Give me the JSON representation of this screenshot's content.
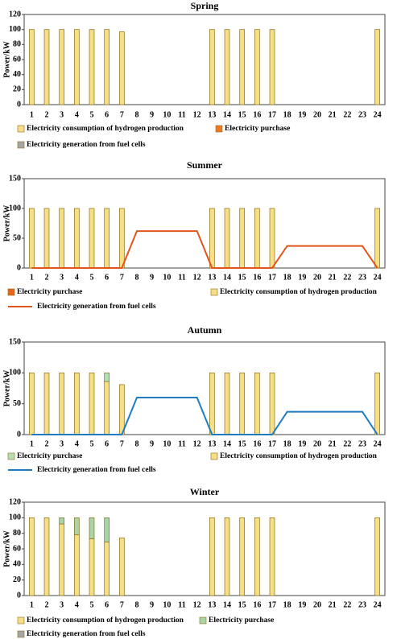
{
  "chart_data": [
    {
      "type": "bar",
      "title": "Spring",
      "y_label": "Power/kW",
      "categories": [
        "1",
        "2",
        "3",
        "4",
        "5",
        "6",
        "7",
        "8",
        "9",
        "10",
        "11",
        "12",
        "13",
        "14",
        "15",
        "16",
        "17",
        "18",
        "19",
        "20",
        "21",
        "22",
        "23",
        "24"
      ],
      "ylim": [
        0,
        120
      ],
      "yticks": [
        0,
        20,
        40,
        60,
        80,
        100,
        120
      ],
      "series": [
        {
          "name": "Electricity consumption of hydrogen production",
          "type": "bar",
          "color": "#f7df86",
          "values": [
            100,
            100,
            100,
            100,
            100,
            100,
            97,
            0,
            0,
            0,
            0,
            0,
            100,
            100,
            100,
            100,
            100,
            0,
            0,
            0,
            0,
            0,
            0,
            100
          ]
        },
        {
          "name": "Electricity purchase",
          "type": "bar",
          "color": "#ee7a22",
          "values": [
            0,
            0,
            0,
            0,
            0,
            0,
            0,
            0,
            0,
            0,
            0,
            0,
            0,
            0,
            0,
            0,
            0,
            0,
            0,
            0,
            0,
            0,
            0,
            0
          ]
        },
        {
          "name": "Electricity generation from fuel cells",
          "type": "bar",
          "color": "#a6a6a6",
          "values": [
            0,
            0,
            0,
            0,
            0,
            0,
            0,
            0,
            0,
            0,
            0,
            0,
            0,
            0,
            0,
            0,
            0,
            0,
            0,
            0,
            0,
            0,
            0,
            0
          ]
        }
      ]
    },
    {
      "type": "bar",
      "title": "Summer",
      "y_label": "Power/kW",
      "categories": [
        "1",
        "2",
        "3",
        "4",
        "5",
        "6",
        "7",
        "8",
        "9",
        "10",
        "11",
        "12",
        "13",
        "14",
        "15",
        "16",
        "17",
        "18",
        "19",
        "20",
        "21",
        "22",
        "23",
        "24"
      ],
      "ylim": [
        0,
        150
      ],
      "yticks": [
        0,
        50,
        100,
        150
      ],
      "series": [
        {
          "name": "Electricity consumption of hydrogen production",
          "type": "bar",
          "color": "#f7df86",
          "values": [
            100,
            100,
            100,
            100,
            100,
            100,
            100,
            0,
            0,
            0,
            0,
            0,
            100,
            100,
            100,
            100,
            100,
            0,
            0,
            0,
            0,
            0,
            0,
            100
          ]
        },
        {
          "name": "Electricity purchase",
          "type": "bar",
          "color": "#e8661c",
          "values": [
            0,
            0,
            0,
            0,
            0,
            0,
            0,
            0,
            0,
            0,
            0,
            0,
            0,
            0,
            0,
            0,
            0,
            0,
            0,
            0,
            0,
            0,
            0,
            0
          ]
        },
        {
          "name": "Electricity generation from fuel cells",
          "type": "line",
          "color": "#e0561a",
          "values": [
            0,
            0,
            0,
            0,
            0,
            0,
            0,
            62,
            62,
            62,
            62,
            62,
            0,
            0,
            0,
            0,
            0,
            37,
            37,
            37,
            37,
            37,
            37,
            0
          ]
        }
      ]
    },
    {
      "type": "bar",
      "title": "Autumn",
      "y_label": "Power/kW",
      "categories": [
        "1",
        "2",
        "3",
        "4",
        "5",
        "6",
        "7",
        "8",
        "9",
        "10",
        "11",
        "12",
        "13",
        "14",
        "15",
        "16",
        "17",
        "18",
        "19",
        "20",
        "21",
        "22",
        "23",
        "24"
      ],
      "ylim": [
        0,
        150
      ],
      "yticks": [
        0,
        50,
        100,
        150
      ],
      "series": [
        {
          "name": "Electricity consumption of hydrogen production",
          "type": "bar",
          "color": "#f7df86",
          "values": [
            100,
            100,
            100,
            100,
            100,
            86,
            81,
            0,
            0,
            0,
            0,
            0,
            100,
            100,
            100,
            100,
            100,
            0,
            0,
            0,
            0,
            0,
            0,
            100
          ]
        },
        {
          "name": "Electricity purchase",
          "type": "bar",
          "color": "#b5dfb0",
          "values": [
            0,
            0,
            0,
            0,
            0,
            14,
            0,
            0,
            0,
            0,
            0,
            0,
            0,
            0,
            0,
            0,
            0,
            0,
            0,
            0,
            0,
            0,
            0,
            0
          ]
        },
        {
          "name": "Electricity generation from fuel cells",
          "type": "line",
          "color": "#1f7cc1",
          "values": [
            0,
            0,
            0,
            0,
            0,
            0,
            0,
            60,
            60,
            60,
            60,
            60,
            0,
            0,
            0,
            0,
            0,
            37,
            37,
            37,
            37,
            37,
            37,
            0
          ]
        }
      ]
    },
    {
      "type": "bar",
      "title": "Winter",
      "y_label": "Power/kW",
      "categories": [
        "1",
        "2",
        "3",
        "4",
        "5",
        "6",
        "7",
        "8",
        "9",
        "10",
        "11",
        "12",
        "13",
        "14",
        "15",
        "16",
        "17",
        "18",
        "19",
        "20",
        "21",
        "22",
        "23",
        "24"
      ],
      "ylim": [
        0,
        120
      ],
      "yticks": [
        0,
        20,
        40,
        60,
        80,
        100,
        120
      ],
      "series": [
        {
          "name": "Electricity consumption of hydrogen production",
          "type": "bar",
          "color": "#f7df86",
          "values": [
            100,
            100,
            92,
            78,
            73,
            69,
            74,
            0,
            0,
            0,
            0,
            0,
            100,
            100,
            100,
            100,
            100,
            0,
            0,
            0,
            0,
            0,
            0,
            100
          ]
        },
        {
          "name": "Electricity purchase",
          "type": "bar",
          "color": "#a9d4a6",
          "values": [
            0,
            0,
            8,
            22,
            27,
            31,
            0,
            0,
            0,
            0,
            0,
            0,
            0,
            0,
            0,
            0,
            0,
            0,
            0,
            0,
            0,
            0,
            0,
            0
          ]
        },
        {
          "name": "Electricity generation from fuel cells",
          "type": "bar",
          "color": "#a6a6a6",
          "values": [
            0,
            0,
            0,
            0,
            0,
            0,
            0,
            0,
            0,
            0,
            0,
            0,
            0,
            0,
            0,
            0,
            0,
            0,
            0,
            0,
            0,
            0,
            0,
            0
          ]
        }
      ]
    }
  ]
}
